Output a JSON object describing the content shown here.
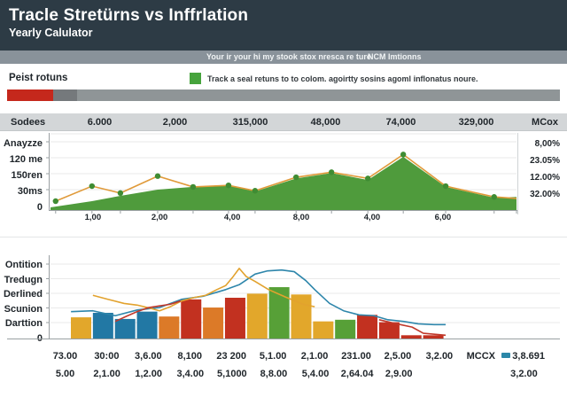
{
  "header": {
    "title": "Tracle Stretürns vs Inffrlation",
    "subtitle": "Yearly Calulator"
  },
  "toolbar": {
    "tab_left": "Your ir your hi my stook stox nresca re ture",
    "tab_right": "NCM Imtionns"
  },
  "legend_row": {
    "title": "Peist rotuns",
    "legend_text": "Track a seal retuns to to colom. agoirtty sosins agoml inflonatus noure.",
    "legend_color": "#46a33c"
  },
  "progress": {
    "segments": [
      {
        "name": "red",
        "color": "#c5281c",
        "width_pct": 8.4
      },
      {
        "name": "dark-gray",
        "color": "#75797c",
        "width_pct": 4.2
      },
      {
        "name": "gray",
        "color": "#8f9597",
        "width_pct": 87.4
      }
    ]
  },
  "summary_row": {
    "label": "Sodees",
    "values": [
      "6.000",
      "2,000",
      "315,000",
      "48,000",
      "74,000",
      "329,000"
    ],
    "right_label": "MCox"
  },
  "chart_data": [
    {
      "type": "area",
      "title": "",
      "ylim": [
        0,
        100
      ],
      "y_axis_labels": [
        "Anayzze",
        "120 me",
        "150ren",
        "30ms",
        "0"
      ],
      "right_axis_labels": [
        "8,00%",
        "23.05%",
        "12.00%",
        "32.00%"
      ],
      "x_ticks": [
        {
          "label": "1,00",
          "pos": 9.1
        },
        {
          "label": "2,00",
          "pos": 23.4
        },
        {
          "label": "4,00",
          "pos": 39.0
        },
        {
          "label": "8,00",
          "pos": 53.8
        },
        {
          "label": "4,00",
          "pos": 69.0
        },
        {
          "label": "6,00",
          "pos": 84.2
        }
      ],
      "series": [
        {
          "name": "returns-area",
          "type": "area",
          "color": "#4f9b3c",
          "x": [
            0,
            8.9,
            15.0,
            23.0,
            30.6,
            38.2,
            43.9,
            52.7,
            60.3,
            68.1,
            75.7,
            84.8,
            95.2,
            100
          ],
          "y": [
            3.4,
            11.5,
            18.4,
            26.4,
            30,
            32,
            24,
            41,
            48,
            39,
            69,
            30,
            16,
            17
          ]
        },
        {
          "name": "inflation-line",
          "type": "line",
          "color": "#e09a3a",
          "marker_color": "#3f8c33",
          "x": [
            1.1,
            8.9,
            15.0,
            23.0,
            30.6,
            38.2,
            43.9,
            52.7,
            60.3,
            68.1,
            75.7,
            84.8,
            95.2,
            100
          ],
          "y": [
            11.5,
            31,
            22,
            44,
            30,
            32,
            25,
            42.5,
            49,
            41,
            72,
            31,
            17,
            15
          ]
        }
      ]
    },
    {
      "type": "bar",
      "title": "",
      "ylim": [
        0,
        100
      ],
      "y_axis_labels": [
        "Ontition",
        "Tredugn",
        "Derlined",
        "Scunion",
        "Darttion",
        "0"
      ],
      "bars": {
        "values": [
          26,
          31.5,
          24,
          33,
          27,
          48,
          38,
          50,
          55,
          63,
          54,
          21,
          23,
          29,
          20,
          4,
          4
        ],
        "colors": [
          "#e2a72b",
          "#2278a4",
          "#2278a4",
          "#2278a4",
          "#dc7a28",
          "#c23120",
          "#dc7a28",
          "#c23120",
          "#e2a72b",
          "#57a037",
          "#e2a72b",
          "#e2a72b",
          "#57a037",
          "#c23120",
          "#c23120",
          "#c23120",
          "#c23120"
        ]
      },
      "lines": [
        {
          "name": "blue-line",
          "color": "#2e86ab",
          "x": [
            4.4,
            9.1,
            13.9,
            18.6,
            23.4,
            28.1,
            32.9,
            37.6,
            40.5,
            43.9,
            46.6,
            49.6,
            52.3,
            54.8,
            56.7,
            59.9,
            62.9,
            66.2,
            69.4,
            72.4,
            75.7,
            78.9,
            82.3,
            84.8
          ],
          "y": [
            33,
            34,
            28,
            35,
            38,
            48,
            52,
            60,
            66,
            79,
            83,
            84,
            82,
            71,
            60,
            43,
            34,
            29,
            28,
            23,
            21,
            18,
            17,
            17
          ]
        },
        {
          "name": "orange-line",
          "color": "#e2a22e",
          "x": [
            9.1,
            12.4,
            15.8,
            18.6,
            21.5,
            23.4,
            25.7,
            28.1,
            30.6,
            33.3,
            35.7,
            37.6,
            39.2,
            40.5,
            42.0,
            43.9,
            46.8,
            50.4,
            54.2,
            56.7
          ],
          "y": [
            53,
            48,
            43,
            41,
            37,
            34,
            39,
            46,
            50,
            53,
            60,
            65,
            76,
            86,
            76,
            70,
            60,
            51,
            42,
            39
          ]
        },
        {
          "name": "red-line-left",
          "color": "#c0392b",
          "x": [
            13.9,
            16.2,
            18.6,
            21.1,
            23.4,
            25.7,
            27.9
          ],
          "y": [
            21,
            27,
            33,
            38,
            40,
            42,
            46
          ]
        },
        {
          "name": "red-line-right",
          "color": "#c0392b",
          "x": [
            70.5,
            74.3,
            77.6,
            80.0,
            84.8
          ],
          "y": [
            23,
            18,
            14,
            6.5,
            4
          ]
        }
      ]
    }
  ],
  "bottom_table": {
    "row1": [
      "73.00",
      "30:00",
      "3,6.00",
      "8,100",
      "23 200",
      "5,1.00",
      "2,1.00",
      "231.00",
      "2,5.00",
      "3,2.00",
      "MCCX",
      "3,8.691"
    ],
    "row2": [
      "5.00",
      "2,1.00",
      "1,2.00",
      "3,4.00",
      "5,1000",
      "8,8.00",
      "5,4.00",
      "2,64.04",
      "2,9.00",
      "",
      "",
      "3,2.00"
    ],
    "legend_marker_color": "#2b87a8"
  },
  "colors": {
    "header_bg": "#2d3b45",
    "toolbar_bg": "#89929a",
    "summary_bg": "#d3d6d8",
    "axis": "#9aa0a3",
    "grid": "#eaeaea"
  }
}
